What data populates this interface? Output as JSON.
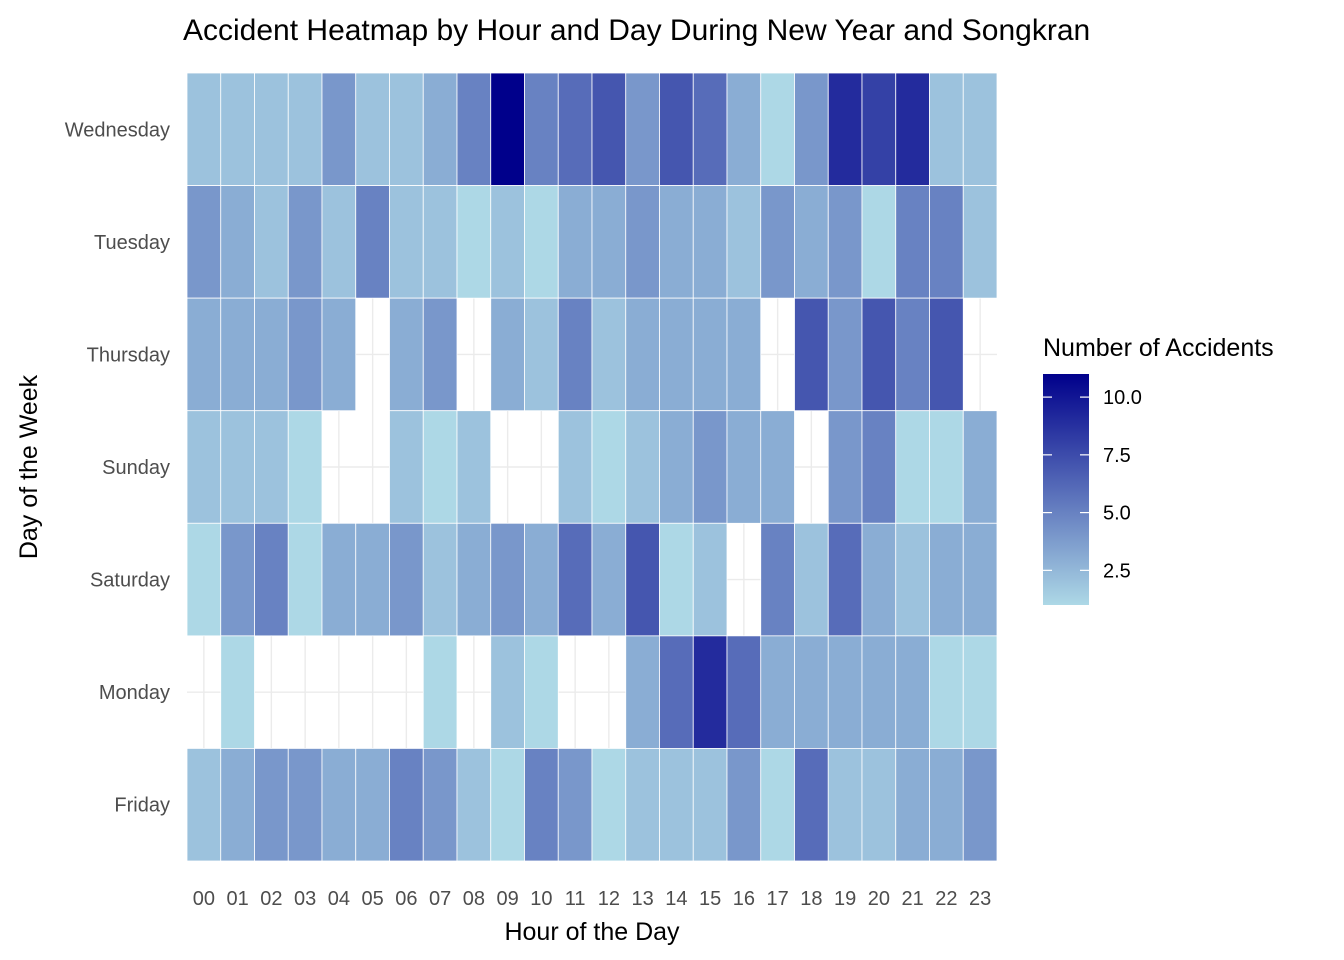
{
  "chart_data": {
    "type": "heatmap",
    "title": "Accident Heatmap by Hour and Day During New Year and Songkran",
    "xlabel": "Hour of the Day",
    "ylabel": "Day of the Week",
    "x": [
      "00",
      "01",
      "02",
      "03",
      "04",
      "05",
      "06",
      "07",
      "08",
      "09",
      "10",
      "11",
      "12",
      "13",
      "14",
      "15",
      "16",
      "17",
      "18",
      "19",
      "20",
      "21",
      "22",
      "23"
    ],
    "y": [
      "Wednesday",
      "Tuesday",
      "Thursday",
      "Sunday",
      "Saturday",
      "Monday",
      "Friday"
    ],
    "values": [
      [
        2,
        2,
        2,
        2,
        4,
        2,
        2,
        3,
        5,
        11,
        5,
        6,
        7,
        4,
        7,
        6,
        3,
        1,
        4,
        9,
        8,
        9,
        2,
        2
      ],
      [
        4,
        3,
        2,
        4,
        2,
        5,
        2,
        2,
        1,
        2,
        1,
        3,
        3,
        4,
        3,
        3,
        2,
        4,
        3,
        4,
        1,
        5,
        5,
        2
      ],
      [
        3,
        3,
        3,
        4,
        3,
        null,
        3,
        4,
        null,
        3,
        2,
        5,
        2,
        3,
        3,
        3,
        3,
        null,
        7,
        4,
        7,
        5,
        7,
        null
      ],
      [
        2,
        2,
        2,
        1,
        null,
        null,
        2,
        1,
        2,
        null,
        null,
        2,
        1,
        2,
        3,
        4,
        3,
        3,
        null,
        4,
        5,
        1,
        1,
        3
      ],
      [
        1,
        4,
        5,
        1,
        3,
        3,
        4,
        2,
        3,
        4,
        3,
        6,
        3,
        7,
        1,
        2,
        null,
        5,
        2,
        6,
        3,
        2,
        3,
        3
      ],
      [
        null,
        1,
        null,
        null,
        null,
        null,
        null,
        1,
        null,
        2,
        1,
        null,
        null,
        3,
        6,
        9,
        6,
        3,
        3,
        3,
        3,
        3,
        1,
        1
      ],
      [
        2,
        3,
        4,
        4,
        3,
        3,
        5,
        4,
        2,
        1,
        5,
        4,
        1,
        2,
        2,
        2,
        4,
        1,
        6,
        2,
        2,
        3,
        3,
        4
      ]
    ],
    "colorscale": {
      "low": "#add8e6",
      "high": "#00008b",
      "min": 1,
      "max": 11
    },
    "grid": true,
    "legend": {
      "title": "Number of Accidents",
      "position": "right",
      "ticks": [
        2.5,
        5.0,
        7.5,
        10.0
      ],
      "tick_labels": [
        "2.5",
        "5.0",
        "7.5",
        "10.0"
      ]
    }
  }
}
